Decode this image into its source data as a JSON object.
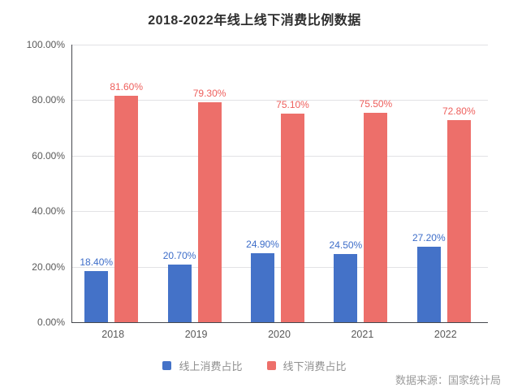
{
  "title": "2018-2022年线上线下消费比例数据",
  "source_note": "数据来源：国家统计局",
  "colors": {
    "background": "#ffffff",
    "axis_line": "#45484d",
    "grid_line": "#e2e2e5",
    "tick_label": "#595959",
    "legend_text": "#8f8f8f",
    "source_text": "#9b9b9b",
    "title_text": "#2e2e2e"
  },
  "chart_data": {
    "type": "bar",
    "title": "2018-2022年线上线下消费比例数据",
    "categories": [
      "2018",
      "2019",
      "2020",
      "2021",
      "2022"
    ],
    "series": [
      {
        "key": "online",
        "name": "线上消费占比",
        "color": "#4472c8",
        "label_color": "#3d6dc9",
        "values": [
          18.4,
          20.7,
          24.9,
          24.5,
          27.2
        ]
      },
      {
        "key": "offline",
        "name": "线下消费占比",
        "color": "#ed6f6a",
        "label_color": "#ee5f5c",
        "values": [
          81.6,
          79.3,
          75.1,
          75.5,
          72.8
        ]
      }
    ],
    "xlabel": "",
    "ylabel": "",
    "ylim": [
      0,
      100
    ],
    "y_ticks": [
      "0.00%",
      "20.00%",
      "40.00%",
      "60.00%",
      "80.00%",
      "100.00%"
    ],
    "value_label_format": "0.00%",
    "grid": true,
    "legend_position": "bottom",
    "annotation": "数据来源：国家统计局"
  }
}
